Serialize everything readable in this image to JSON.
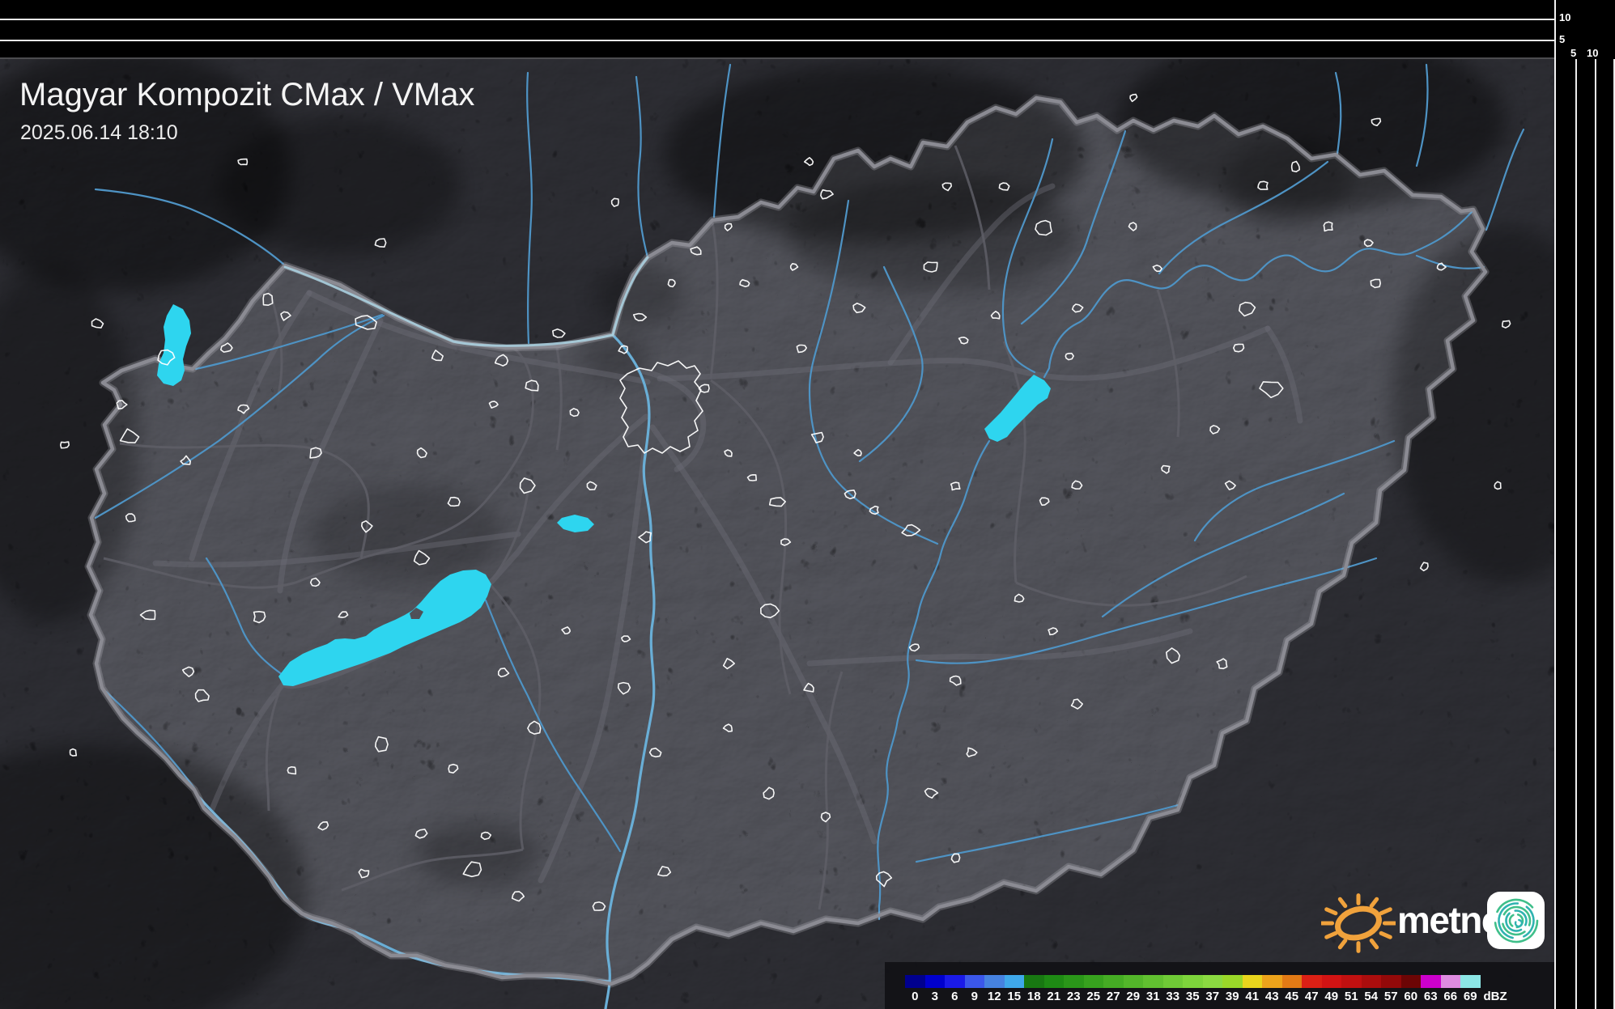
{
  "header": {
    "title": "Magyar Kompozit CMax / VMax",
    "timestamp": "2025.06.14 18:10"
  },
  "scales": {
    "top_height_labels": [
      "10",
      "5"
    ],
    "side_distance_labels": [
      "5",
      "10"
    ]
  },
  "legend": {
    "unit": "dBZ",
    "levels": [
      {
        "label": "0",
        "color": "#00008e"
      },
      {
        "label": "3",
        "color": "#0000cd"
      },
      {
        "label": "6",
        "color": "#1a1ae8"
      },
      {
        "label": "9",
        "color": "#3b57ea"
      },
      {
        "label": "12",
        "color": "#4682e0"
      },
      {
        "label": "15",
        "color": "#3fa8ea"
      },
      {
        "label": "18",
        "color": "#187812"
      },
      {
        "label": "21",
        "color": "#1e8a14"
      },
      {
        "label": "23",
        "color": "#2a9619"
      },
      {
        "label": "25",
        "color": "#37a21e"
      },
      {
        "label": "27",
        "color": "#45ac24"
      },
      {
        "label": "29",
        "color": "#53b62a"
      },
      {
        "label": "31",
        "color": "#61c030"
      },
      {
        "label": "33",
        "color": "#6fca36"
      },
      {
        "label": "35",
        "color": "#7dd43b"
      },
      {
        "label": "37",
        "color": "#8bda41"
      },
      {
        "label": "39",
        "color": "#9ad829"
      },
      {
        "label": "41",
        "color": "#e9d51d"
      },
      {
        "label": "43",
        "color": "#eda31b"
      },
      {
        "label": "45",
        "color": "#e27a15"
      },
      {
        "label": "47",
        "color": "#dc2015"
      },
      {
        "label": "49",
        "color": "#d21313"
      },
      {
        "label": "51",
        "color": "#c11010"
      },
      {
        "label": "54",
        "color": "#ab0d0d"
      },
      {
        "label": "57",
        "color": "#930909"
      },
      {
        "label": "60",
        "color": "#6d0505"
      },
      {
        "label": "63",
        "color": "#cc00cc"
      },
      {
        "label": "66",
        "color": "#de8ce0"
      },
      {
        "label": "69",
        "color": "#8ce6e6"
      }
    ]
  },
  "branding": {
    "logo_text": "metnet",
    "sun_color": "#f0a23c",
    "icon_spiral_teal": "#2fb3b0",
    "icon_spiral_green": "#3fbf8a"
  },
  "map": {
    "colors": {
      "water": "#2ed5ef",
      "river": "#4e93c4",
      "river_major": "#69aed6",
      "county_border": "#5e5e66",
      "road": "#6e6e78",
      "town_outline": "#ffffff",
      "country_border": "#8b8b93",
      "land": "#46464e",
      "outside_shade": "#0a0a0f"
    }
  }
}
